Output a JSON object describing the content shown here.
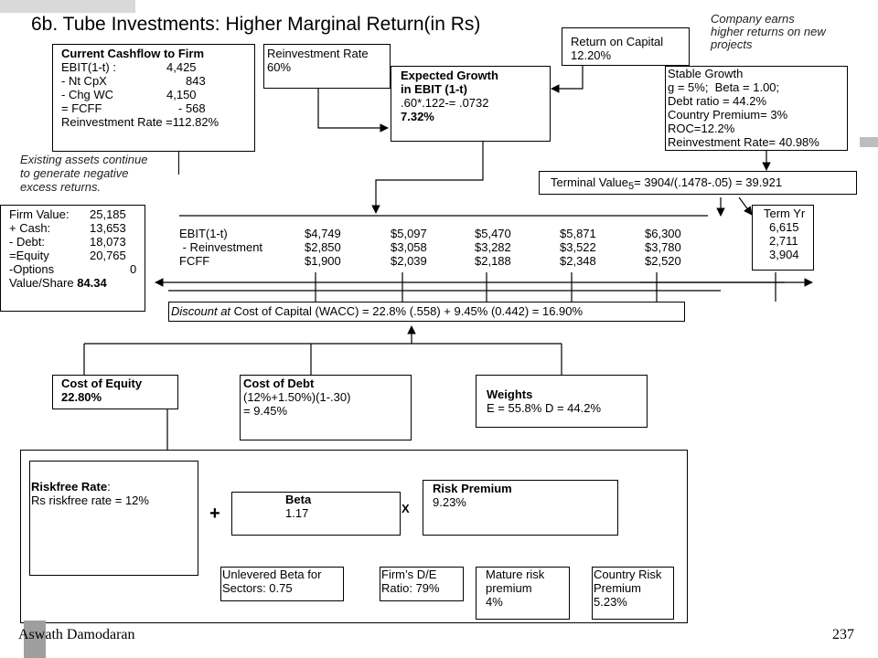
{
  "title": "6b. Tube Investments: Higher Marginal Return(in Rs)",
  "footer": {
    "author": "Aswath Damodaran",
    "page": "237"
  },
  "note_higher_returns": [
    "Company earns",
    "higher returns on new",
    "projects"
  ],
  "note_existing_assets": [
    "Existing assets continue",
    "to generate negative",
    "excess returns."
  ],
  "cashflow": {
    "title": "Current Cashflow to Firm",
    "rows": [
      {
        "label": "EBIT(1-t) :",
        "value": "4,425"
      },
      {
        "label": "- Nt CpX",
        "value": "843"
      },
      {
        "label": "- Chg WC",
        "value": "4,150"
      },
      {
        "label": "= FCFF",
        "value": "- 568"
      }
    ],
    "reinvestment_rate": "Reinvestment Rate =112.82%"
  },
  "reinvestment_box": {
    "label": "Reinvestment Rate",
    "value": "60%"
  },
  "expected_growth": {
    "title_line1": "Expected Growth",
    "title_line2": "in EBIT (1-t)",
    "formula": ".60*.122-= .0732",
    "value": "7.32%"
  },
  "return_on_capital": {
    "label": "Return on Capital",
    "value": "12.20%"
  },
  "stable_growth": {
    "lines": [
      "Stable Growth",
      "g = 5%;  Beta = 1.00;",
      "Debt ratio = 44.2%",
      "Country Premium= 3%",
      "ROC=12.2%",
      "Reinvestment Rate= 40.98%"
    ]
  },
  "terminal_value": {
    "prefix": "Terminal Value",
    "sub": "5",
    "formula": "= 3904/(.1478-.05) = 39.921"
  },
  "firm_value": {
    "rows": [
      {
        "label": "Firm Value:",
        "value": "25,185"
      },
      {
        "label": "+ Cash:",
        "value": "13,653"
      },
      {
        "label": "- Debt:",
        "value": "18,073"
      },
      {
        "label": "=Equity",
        "value": "20,765"
      },
      {
        "label": "-Options",
        "value": "0"
      }
    ],
    "per_share_label": "Value/Share",
    "per_share_value": "84.34"
  },
  "cashflow_table": {
    "row_labels": [
      "EBIT(1-t)",
      " - Reinvestment",
      "FCFF"
    ],
    "columns": [
      [
        "$4,749",
        "$2,850",
        "$1,900"
      ],
      [
        "$5,097",
        "$3,058",
        "$2,039"
      ],
      [
        "$5,470",
        "$3,282",
        "$2,188"
      ],
      [
        "$5,871",
        "$3,522",
        "$2,348"
      ],
      [
        "$6,300",
        "$3,780",
        "$2,520"
      ]
    ]
  },
  "term_year": {
    "title": "Term Yr",
    "values": [
      "6,615",
      "2,711",
      "3,904"
    ]
  },
  "discount": {
    "italic": "Discount at",
    "rest": " Cost of Capital (WACC) = 22.8% (.558) + 9.45% (0.442) = 16.90%"
  },
  "cost_of_equity": {
    "label": "Cost of Equity",
    "value": "22.80%"
  },
  "cost_of_debt": {
    "label": "Cost of Debt",
    "formula": "(12%+1.50%)(1-.30)",
    "value": "= 9.45%"
  },
  "weights": {
    "label": "Weights",
    "value": "E = 55.8% D = 44.2%"
  },
  "riskfree": {
    "label": "Riskfree Rate",
    "colon": ":",
    "value": "Rs riskfree rate = 12%"
  },
  "beta": {
    "label": "Beta",
    "value": "1.17"
  },
  "risk_premium": {
    "label": "Risk Premium",
    "value": "9.23%"
  },
  "operators": {
    "plus": "+",
    "times": "X"
  },
  "unlevered_beta": {
    "lines": [
      "Unlevered Beta for",
      "Sectors: 0.75"
    ]
  },
  "firm_de": {
    "lines": [
      "Firm’s D/E",
      "Ratio: 79%"
    ]
  },
  "mature_risk": {
    "lines": [
      "Mature risk",
      "premium",
      "4%"
    ]
  },
  "country_risk": {
    "lines": [
      "Country Risk",
      "Premium",
      "5.23%"
    ]
  }
}
